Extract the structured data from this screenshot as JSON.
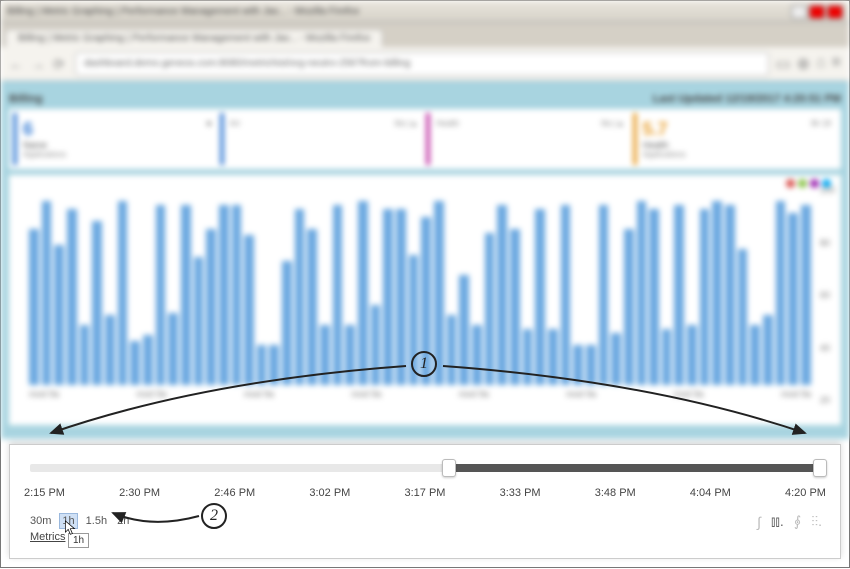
{
  "window_title": "Billing | Metric Graphing | Performance Management with Jav... - Mozilla Firefox",
  "url": "dashboard.demo.geneos.com:8080/metrichist/org-neutro-256?from-billing",
  "dashboard": {
    "title": "Billing",
    "last_updated": "Last Updated 12/19/2017 4:20:51 PM"
  },
  "cards": [
    {
      "value": "6",
      "label": "Name",
      "sub": "Applications",
      "top_right": "■"
    },
    {
      "value": "Art",
      "label": "",
      "sub": "",
      "top_right": "6to |▲"
    },
    {
      "value": "Health",
      "label": "",
      "sub": "",
      "top_right": "6to |▲"
    },
    {
      "value": "5.7",
      "label": "Health",
      "sub": "Applications",
      "top_right": "8h 18"
    }
  ],
  "chart": {
    "type": "bar",
    "bar_values": [
      78,
      92,
      70,
      88,
      30,
      82,
      35,
      92,
      22,
      25,
      90,
      36,
      90,
      64,
      78,
      90,
      90,
      75,
      20,
      20,
      62,
      88,
      78,
      30,
      90,
      30,
      92,
      40,
      88,
      88,
      65,
      84,
      92,
      35,
      55,
      30,
      76,
      90,
      78,
      28,
      88,
      28,
      90,
      20,
      20,
      90,
      26,
      78,
      92,
      88,
      28,
      90,
      30,
      88,
      92,
      90,
      68,
      30,
      35,
      92,
      86,
      90
    ],
    "bar_color": "#6aa8e0",
    "background_color": "#ffffff",
    "x_labels": [
      "mod 9a",
      "mod 9a",
      "mod 9a",
      "mod 9a",
      "mod 9a",
      "mod 9a",
      "mod 9a",
      "mod 9a"
    ],
    "y_labels": [
      "100",
      "80",
      "60",
      "40",
      "20"
    ],
    "status_dots": [
      "#d9534f",
      "#8bc34a",
      "#9c27b0",
      "#03a9f4"
    ]
  },
  "timeline": {
    "min_pos_pct": 53,
    "max_pos_pct": 100,
    "labels": [
      "2:15 PM",
      "2:30 PM",
      "2:46 PM",
      "3:02 PM",
      "3:17 PM",
      "3:33 PM",
      "3:48 PM",
      "4:04 PM",
      "4:20 PM"
    ]
  },
  "zoom": {
    "options": [
      "30m",
      "1h",
      "1.5h",
      "2h"
    ],
    "selected_index": 1,
    "metrics_label": "Metrics",
    "tooltip": "1h"
  },
  "callouts": {
    "one": "1",
    "two": "2"
  },
  "view_icons": [
    "∫",
    "⫾⫾.",
    "⨕",
    "⫶⫶."
  ]
}
